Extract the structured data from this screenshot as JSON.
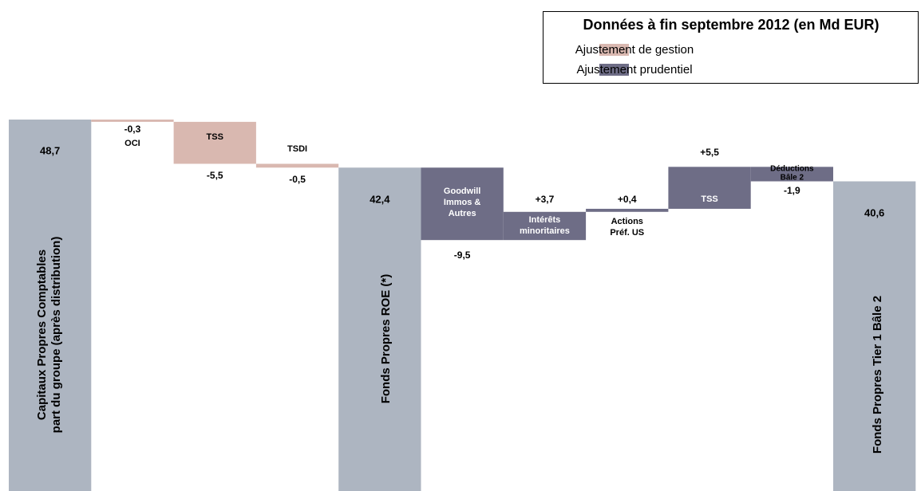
{
  "chart_data": {
    "type": "waterfall",
    "legend": {
      "title": "Données à fin septembre 2012 (en Md EUR)"
    },
    "series": [
      {
        "name": "Ajustement de gestion",
        "color": "#d9b8b0"
      },
      {
        "name": "Ajustement prudentiel",
        "color": "#6e6d86"
      }
    ],
    "categories": [
      [
        "Capitaux Propres Comptables",
        "part du groupe (après distribution)"
      ],
      [
        "OCI"
      ],
      [
        "TSS"
      ],
      [
        "TSDI"
      ],
      [
        "Fonds Propres ROE (*)"
      ],
      [
        "Goodwill",
        "Immos &",
        "Autres"
      ],
      [
        "Intérêts",
        "minoritaires"
      ],
      [
        "Actions",
        "Préf.  US"
      ],
      [
        "TSS"
      ],
      [
        "Déductions",
        "Bâle 2"
      ],
      [
        "Fonds Propres Tier 1 Bâle 2"
      ]
    ],
    "values": [
      48.7,
      -0.3,
      -5.5,
      -0.5,
      42.4,
      -9.5,
      3.7,
      0.4,
      5.5,
      -1.9,
      40.6
    ],
    "value_labels": [
      "48,7",
      "-0,3",
      "-5,5",
      "-0,5",
      "42,4",
      "-9,5",
      "+3,7",
      "+0,4",
      "+5,5",
      "-1,9",
      "40,6"
    ],
    "measure": [
      "absolute",
      "relative",
      "relative",
      "relative",
      "absolute",
      "relative",
      "relative",
      "relative",
      "relative",
      "relative",
      "absolute"
    ],
    "colors": [
      "#adb5c1",
      "#d9b8b0",
      "#d9b8b0",
      "#d9b8b0",
      "#adb5c1",
      "#6e6d86",
      "#6e6d86",
      "#6e6d86",
      "#6e6d86",
      "#6e6d86",
      "#adb5c1"
    ]
  }
}
